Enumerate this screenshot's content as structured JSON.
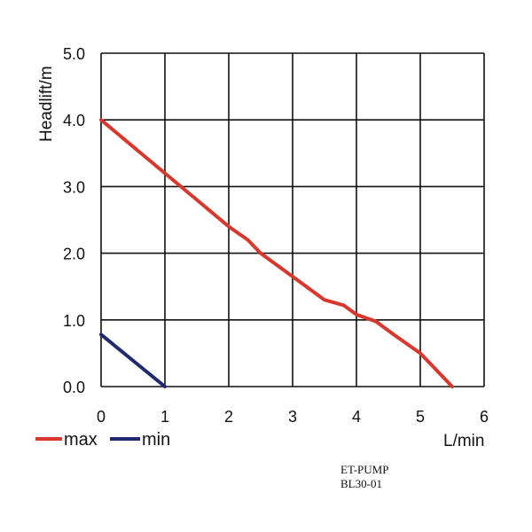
{
  "chart_data": {
    "type": "line",
    "ylabel": "Headlift/m",
    "xlabel": "L/min",
    "xlim": [
      0,
      6
    ],
    "ylim": [
      0,
      5
    ],
    "x_ticks": [
      "0",
      "1",
      "2",
      "3",
      "4",
      "5",
      "6"
    ],
    "y_ticks": [
      "0.0",
      "1.0",
      "2.0",
      "3.0",
      "4.0",
      "5.0"
    ],
    "grid": true,
    "legend_position": "bottom-left",
    "series": [
      {
        "name": "max",
        "color": "#d9372b",
        "points": [
          [
            0,
            4.0
          ],
          [
            0.5,
            3.6
          ],
          [
            1.0,
            3.2
          ],
          [
            1.5,
            2.8
          ],
          [
            2.0,
            2.4
          ],
          [
            2.3,
            2.2
          ],
          [
            2.5,
            2.0
          ],
          [
            3.0,
            1.65
          ],
          [
            3.5,
            1.3
          ],
          [
            3.8,
            1.22
          ],
          [
            4.0,
            1.08
          ],
          [
            4.3,
            0.98
          ],
          [
            4.6,
            0.77
          ],
          [
            5.0,
            0.5
          ],
          [
            5.1,
            0.4
          ],
          [
            5.5,
            0.0
          ]
        ]
      },
      {
        "name": "min",
        "color": "#1f2a6e",
        "points": [
          [
            0,
            0.78
          ],
          [
            1.0,
            0.0
          ]
        ]
      }
    ]
  },
  "caption": {
    "line1": "ET-PUMP",
    "line2": "BL30-01"
  }
}
